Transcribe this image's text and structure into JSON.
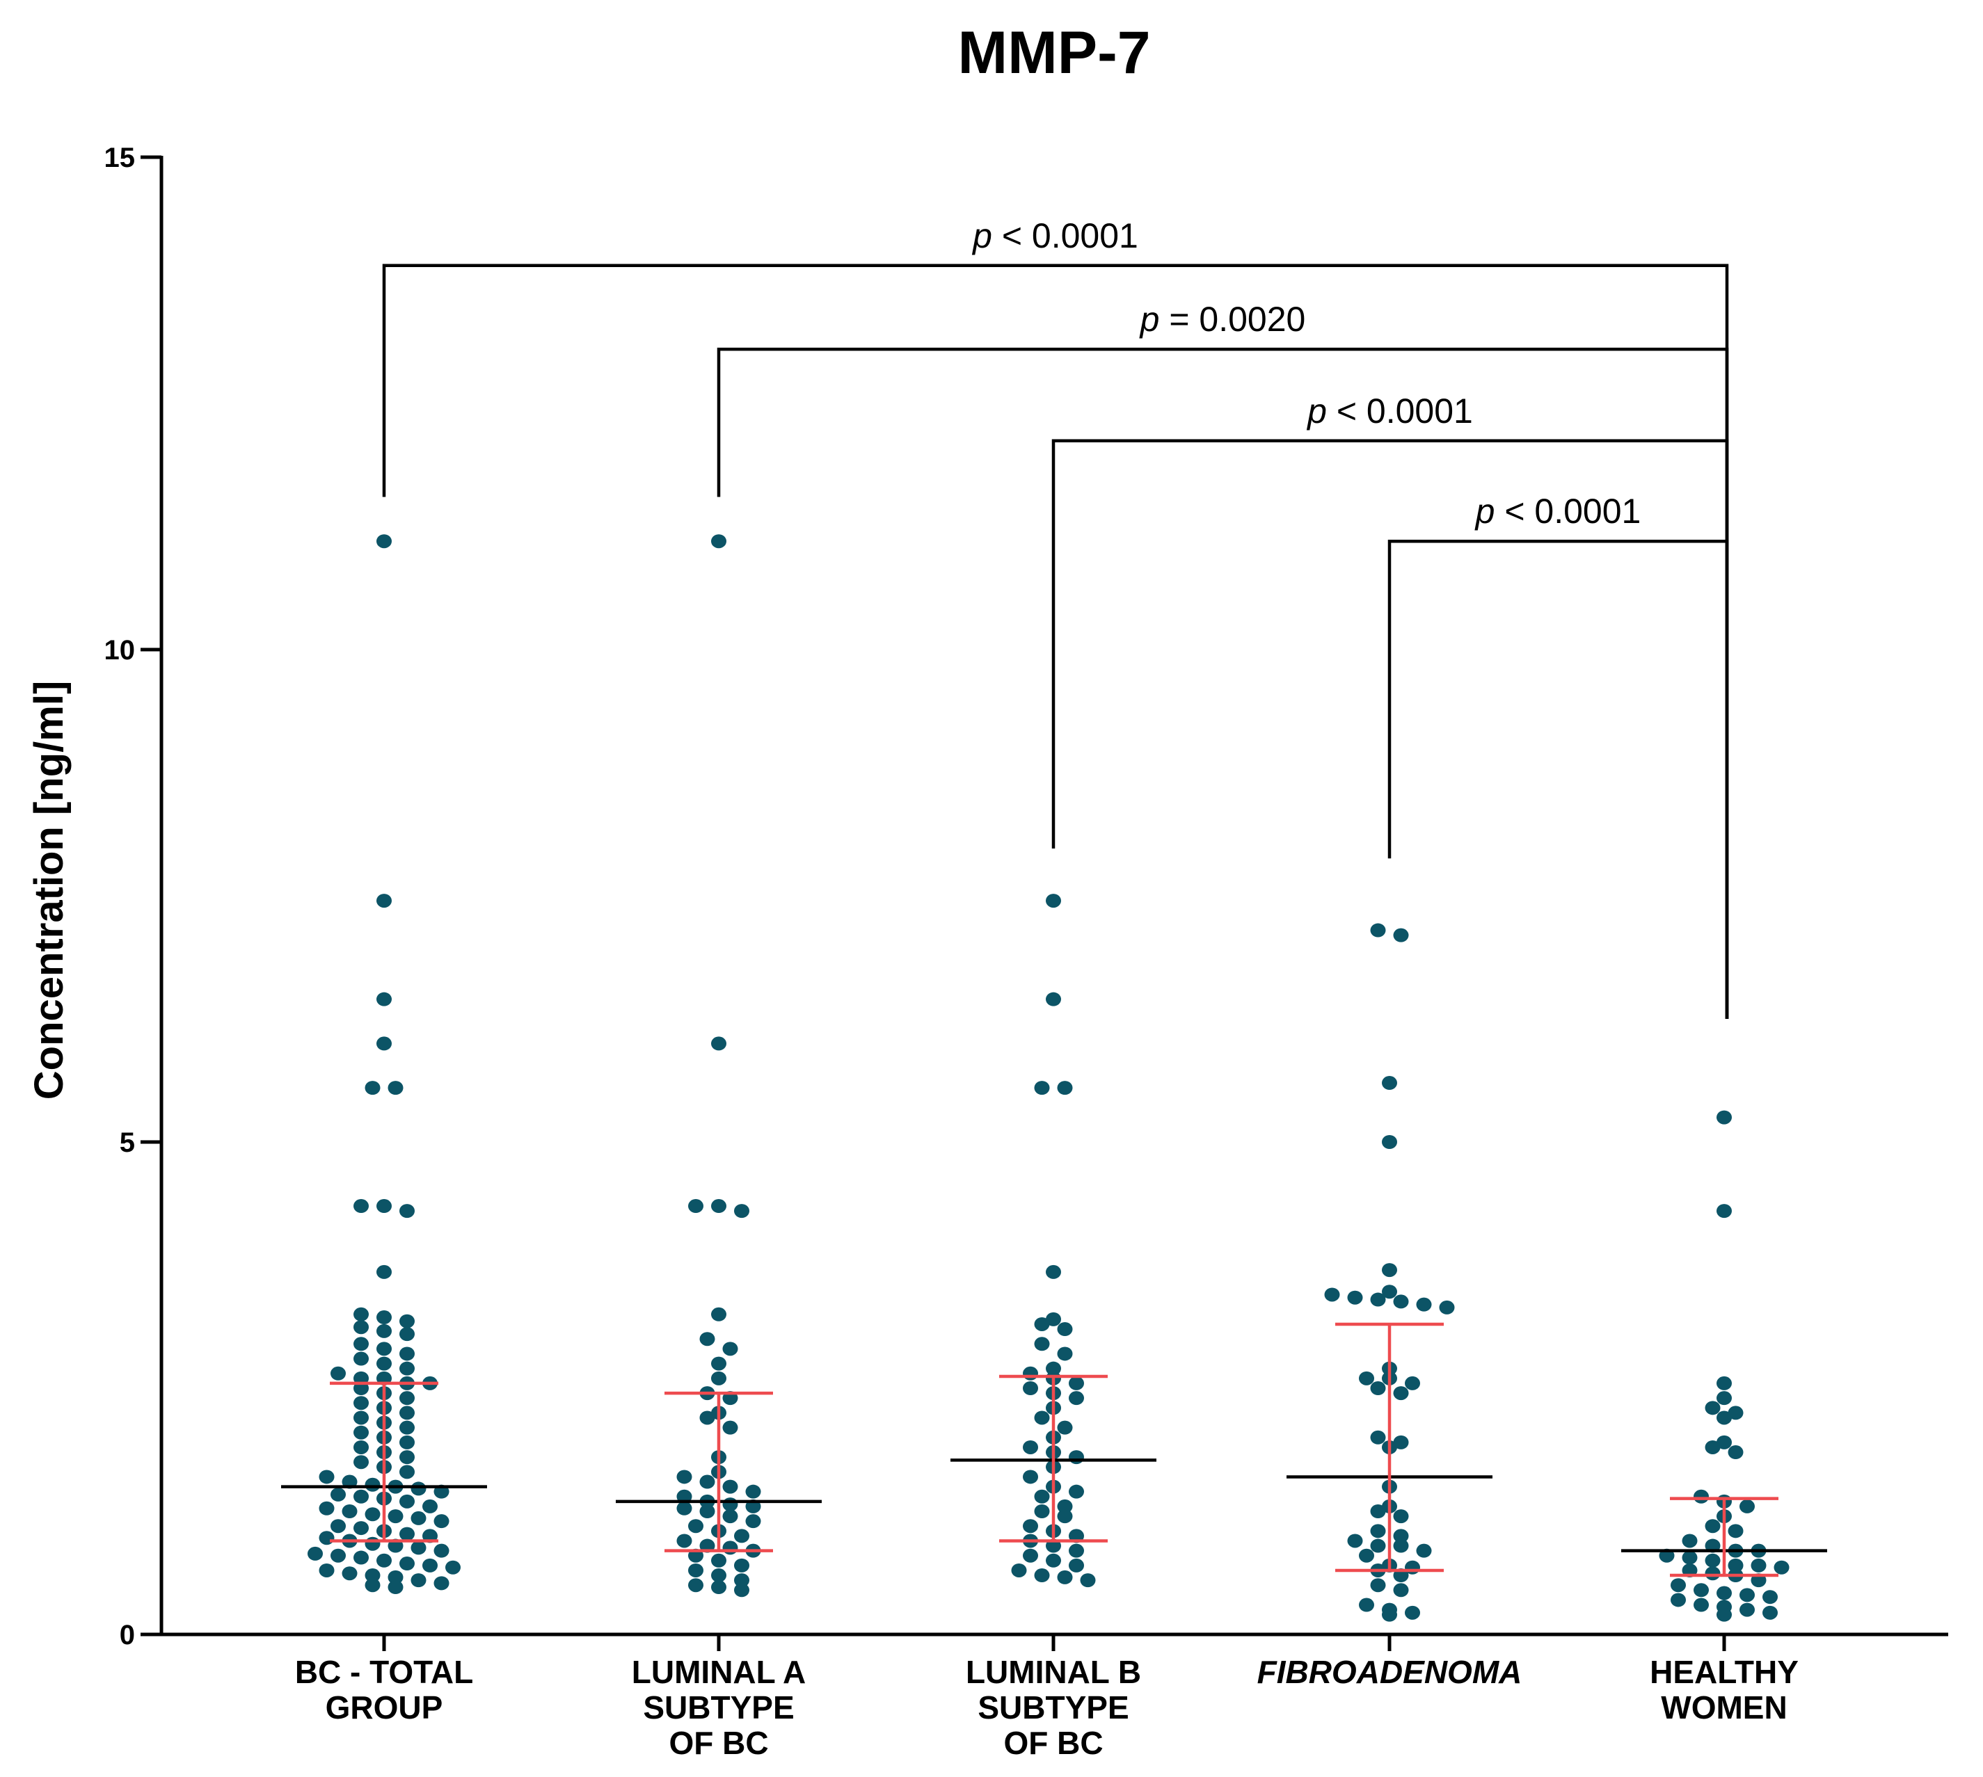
{
  "chart_data": {
    "type": "scatter",
    "subtype": "dot plot with median and interquartile range",
    "title": "MMP-7",
    "xlabel": "",
    "ylabel": "Concentration [ng/ml]",
    "ylim": [
      0,
      15
    ],
    "yticks": [
      0,
      5,
      10,
      15
    ],
    "categories": [
      {
        "lines": [
          "BC - TOTAL",
          "GROUP"
        ],
        "italic": false
      },
      {
        "lines": [
          "LUMINAL A",
          "SUBTYPE",
          "OF BC"
        ],
        "italic": false
      },
      {
        "lines": [
          "LUMINAL B",
          "SUBTYPE",
          "OF BC"
        ],
        "italic": false
      },
      {
        "lines": [
          "FIBROADENOMA"
        ],
        "italic": true
      },
      {
        "lines": [
          "HEALTHY",
          "WOMEN"
        ],
        "italic": false
      }
    ],
    "groups": [
      {
        "median": 1.5,
        "q1": 0.95,
        "q3": 2.55,
        "values": [
          11.1,
          7.45,
          6.45,
          6.0,
          5.55,
          5.55,
          4.35,
          4.35,
          4.3,
          3.68,
          3.25,
          3.22,
          3.18,
          3.12,
          3.08,
          3.05,
          2.95,
          2.9,
          2.85,
          2.8,
          2.75,
          2.7,
          2.65,
          2.6,
          2.6,
          2.55,
          2.55,
          2.5,
          2.45,
          2.4,
          2.35,
          2.3,
          2.25,
          2.2,
          2.15,
          2.1,
          2.05,
          2.0,
          1.95,
          1.9,
          1.85,
          1.8,
          1.75,
          1.7,
          1.65,
          1.6,
          1.55,
          1.52,
          1.5,
          1.48,
          1.45,
          1.42,
          1.4,
          1.38,
          1.35,
          1.3,
          1.28,
          1.25,
          1.22,
          1.2,
          1.18,
          1.15,
          1.1,
          1.08,
          1.05,
          1.02,
          1.0,
          0.98,
          0.95,
          0.92,
          0.9,
          0.88,
          0.85,
          0.82,
          0.8,
          0.78,
          0.75,
          0.72,
          0.7,
          0.68,
          0.65,
          0.62,
          0.6,
          0.58,
          0.55,
          0.52,
          0.5,
          0.48
        ]
      },
      {
        "median": 1.35,
        "q1": 0.85,
        "q3": 2.45,
        "values": [
          11.1,
          6.0,
          4.35,
          4.35,
          4.3,
          3.25,
          3.0,
          2.9,
          2.75,
          2.6,
          2.45,
          2.4,
          2.25,
          2.2,
          2.1,
          1.8,
          1.65,
          1.6,
          1.55,
          1.5,
          1.45,
          1.4,
          1.35,
          1.32,
          1.3,
          1.28,
          1.25,
          1.2,
          1.15,
          1.1,
          1.05,
          1.0,
          0.95,
          0.9,
          0.88,
          0.85,
          0.8,
          0.75,
          0.7,
          0.65,
          0.6,
          0.55,
          0.5,
          0.48,
          0.45
        ]
      },
      {
        "median": 1.77,
        "q1": 0.95,
        "q3": 2.62,
        "values": [
          7.45,
          6.45,
          5.55,
          5.55,
          3.68,
          3.2,
          3.15,
          3.1,
          2.95,
          2.85,
          2.7,
          2.65,
          2.6,
          2.55,
          2.5,
          2.45,
          2.4,
          2.3,
          2.2,
          2.1,
          2.0,
          1.9,
          1.85,
          1.8,
          1.7,
          1.6,
          1.5,
          1.45,
          1.4,
          1.3,
          1.25,
          1.2,
          1.1,
          1.05,
          1.0,
          0.95,
          0.9,
          0.85,
          0.8,
          0.75,
          0.7,
          0.65,
          0.6,
          0.58,
          0.55
        ]
      },
      {
        "median": 1.6,
        "q1": 0.65,
        "q3": 3.15,
        "values": [
          7.15,
          7.1,
          5.6,
          5.0,
          3.7,
          3.48,
          3.45,
          3.42,
          3.4,
          3.38,
          3.35,
          3.32,
          2.7,
          2.6,
          2.6,
          2.55,
          2.5,
          2.45,
          2.0,
          1.95,
          1.9,
          1.5,
          1.3,
          1.25,
          1.2,
          1.05,
          1.0,
          0.95,
          0.9,
          0.9,
          0.85,
          0.8,
          0.7,
          0.68,
          0.65,
          0.6,
          0.5,
          0.45,
          0.3,
          0.25,
          0.22,
          0.2
        ]
      },
      {
        "median": 0.85,
        "q1": 0.6,
        "q3": 1.38,
        "values": [
          5.25,
          4.3,
          2.55,
          2.4,
          2.3,
          2.25,
          2.2,
          1.95,
          1.9,
          1.85,
          1.4,
          1.35,
          1.3,
          1.2,
          1.1,
          1.05,
          0.95,
          0.9,
          0.85,
          0.85,
          0.8,
          0.78,
          0.75,
          0.7,
          0.7,
          0.68,
          0.65,
          0.62,
          0.6,
          0.55,
          0.5,
          0.45,
          0.42,
          0.4,
          0.38,
          0.35,
          0.3,
          0.28,
          0.25,
          0.22,
          0.2
        ]
      }
    ],
    "comparisons": [
      {
        "from": 0,
        "to": 4,
        "y": 13.9,
        "left_drop": 11.55,
        "right_drop": 6.25,
        "p_symbol": "p",
        "p_rest": " < 0.0001"
      },
      {
        "from": 1,
        "to": 4,
        "y": 13.05,
        "left_drop": 11.55,
        "right_drop": 6.25,
        "p_symbol": "p",
        "p_rest": " = 0.0020"
      },
      {
        "from": 2,
        "to": 4,
        "y": 12.12,
        "left_drop": 7.98,
        "right_drop": 6.25,
        "p_symbol": "p",
        "p_rest": " < 0.0001"
      },
      {
        "from": 3,
        "to": 4,
        "y": 11.1,
        "left_drop": 7.88,
        "right_drop": 6.25,
        "p_symbol": "p",
        "p_rest": " < 0.0001"
      }
    ]
  }
}
